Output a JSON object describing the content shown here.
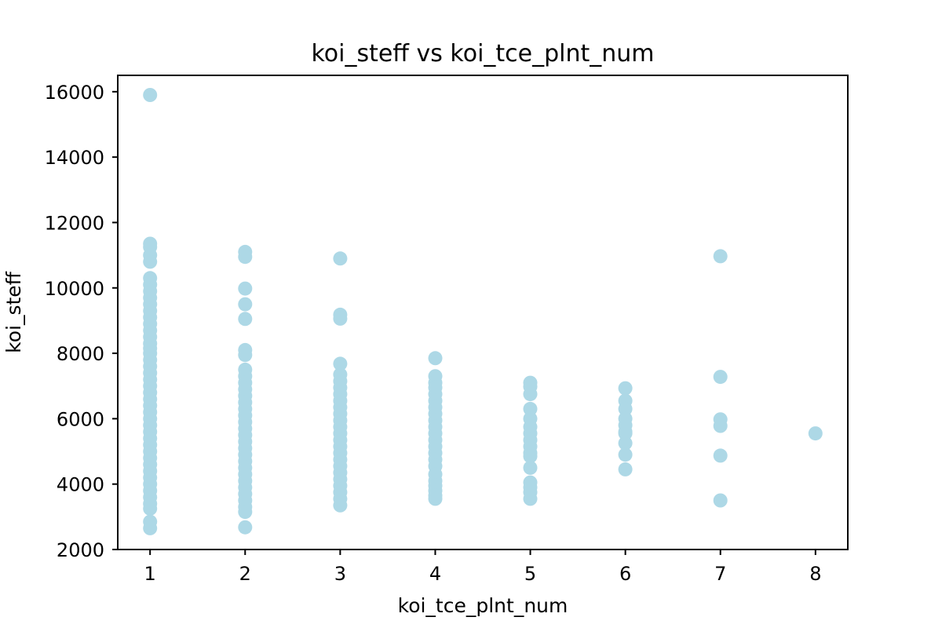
{
  "chart_data": {
    "type": "scatter",
    "title": "koi_steff vs koi_tce_plnt_num",
    "xlabel": "koi_tce_plnt_num",
    "ylabel": "koi_steff",
    "xlim": [
      0.66,
      8.34
    ],
    "ylim": [
      2000,
      16500
    ],
    "x_ticks": [
      1,
      2,
      3,
      4,
      5,
      6,
      7,
      8
    ],
    "y_ticks": [
      2000,
      4000,
      6000,
      8000,
      10000,
      12000,
      14000,
      16000
    ],
    "grid": false,
    "legend": "none",
    "marker_color": "#add8e6",
    "series": [
      {
        "points": [
          [
            1,
            15900
          ],
          [
            1,
            11350
          ],
          [
            1,
            11250
          ],
          [
            1,
            11000
          ],
          [
            1,
            10800
          ],
          [
            1,
            10300
          ],
          [
            1,
            10100
          ],
          [
            1,
            9900
          ],
          [
            1,
            9700
          ],
          [
            1,
            9500
          ],
          [
            1,
            9300
          ],
          [
            1,
            9100
          ],
          [
            1,
            8900
          ],
          [
            1,
            8700
          ],
          [
            1,
            8500
          ],
          [
            1,
            8300
          ],
          [
            1,
            8150
          ],
          [
            1,
            8000
          ],
          [
            1,
            7800
          ],
          [
            1,
            7600
          ],
          [
            1,
            7400
          ],
          [
            1,
            7200
          ],
          [
            1,
            7000
          ],
          [
            1,
            6800
          ],
          [
            1,
            6600
          ],
          [
            1,
            6400
          ],
          [
            1,
            6200
          ],
          [
            1,
            6000
          ],
          [
            1,
            5800
          ],
          [
            1,
            5600
          ],
          [
            1,
            5400
          ],
          [
            1,
            5200
          ],
          [
            1,
            5000
          ],
          [
            1,
            4800
          ],
          [
            1,
            4600
          ],
          [
            1,
            4400
          ],
          [
            1,
            4200
          ],
          [
            1,
            4000
          ],
          [
            1,
            3800
          ],
          [
            1,
            3600
          ],
          [
            1,
            3400
          ],
          [
            1,
            3250
          ],
          [
            1,
            2850
          ],
          [
            1,
            2650
          ],
          [
            2,
            11100
          ],
          [
            2,
            10950
          ],
          [
            2,
            9980
          ],
          [
            2,
            9500
          ],
          [
            2,
            9050
          ],
          [
            2,
            8100
          ],
          [
            2,
            7950
          ],
          [
            2,
            7500
          ],
          [
            2,
            7300
          ],
          [
            2,
            7100
          ],
          [
            2,
            6900
          ],
          [
            2,
            6700
          ],
          [
            2,
            6500
          ],
          [
            2,
            6300
          ],
          [
            2,
            6100
          ],
          [
            2,
            5900
          ],
          [
            2,
            5700
          ],
          [
            2,
            5500
          ],
          [
            2,
            5300
          ],
          [
            2,
            5100
          ],
          [
            2,
            4900
          ],
          [
            2,
            4700
          ],
          [
            2,
            4500
          ],
          [
            2,
            4300
          ],
          [
            2,
            4100
          ],
          [
            2,
            3900
          ],
          [
            2,
            3700
          ],
          [
            2,
            3500
          ],
          [
            2,
            3300
          ],
          [
            2,
            3150
          ],
          [
            2,
            2680
          ],
          [
            3,
            10900
          ],
          [
            3,
            9180
          ],
          [
            3,
            9060
          ],
          [
            3,
            7680
          ],
          [
            3,
            7350
          ],
          [
            3,
            7150
          ],
          [
            3,
            6950
          ],
          [
            3,
            6750
          ],
          [
            3,
            6550
          ],
          [
            3,
            6350
          ],
          [
            3,
            6150
          ],
          [
            3,
            5950
          ],
          [
            3,
            5750
          ],
          [
            3,
            5550
          ],
          [
            3,
            5350
          ],
          [
            3,
            5150
          ],
          [
            3,
            4950
          ],
          [
            3,
            4750
          ],
          [
            3,
            4550
          ],
          [
            3,
            4350
          ],
          [
            3,
            4150
          ],
          [
            3,
            3950
          ],
          [
            3,
            3750
          ],
          [
            3,
            3550
          ],
          [
            3,
            3350
          ],
          [
            4,
            7850
          ],
          [
            4,
            7300
          ],
          [
            4,
            7100
          ],
          [
            4,
            6950
          ],
          [
            4,
            6750
          ],
          [
            4,
            6550
          ],
          [
            4,
            6350
          ],
          [
            4,
            6150
          ],
          [
            4,
            5950
          ],
          [
            4,
            5750
          ],
          [
            4,
            5550
          ],
          [
            4,
            5350
          ],
          [
            4,
            5150
          ],
          [
            4,
            4950
          ],
          [
            4,
            4750
          ],
          [
            4,
            4550
          ],
          [
            4,
            4300
          ],
          [
            4,
            4100
          ],
          [
            4,
            3950
          ],
          [
            4,
            3800
          ],
          [
            4,
            3650
          ],
          [
            4,
            3550
          ],
          [
            5,
            7100
          ],
          [
            5,
            6980
          ],
          [
            5,
            6750
          ],
          [
            5,
            6300
          ],
          [
            5,
            6000
          ],
          [
            5,
            5750
          ],
          [
            5,
            5550
          ],
          [
            5,
            5350
          ],
          [
            5,
            5150
          ],
          [
            5,
            4950
          ],
          [
            5,
            4850
          ],
          [
            5,
            4500
          ],
          [
            5,
            4050
          ],
          [
            5,
            3900
          ],
          [
            5,
            3750
          ],
          [
            5,
            3550
          ],
          [
            6,
            6930
          ],
          [
            6,
            6550
          ],
          [
            6,
            6300
          ],
          [
            6,
            6000
          ],
          [
            6,
            5800
          ],
          [
            6,
            5600
          ],
          [
            6,
            5550
          ],
          [
            6,
            5250
          ],
          [
            6,
            4900
          ],
          [
            6,
            4450
          ],
          [
            7,
            10970
          ],
          [
            7,
            7280
          ],
          [
            7,
            5980
          ],
          [
            7,
            5780
          ],
          [
            7,
            4870
          ],
          [
            7,
            3500
          ],
          [
            8,
            5550
          ]
        ]
      }
    ]
  }
}
